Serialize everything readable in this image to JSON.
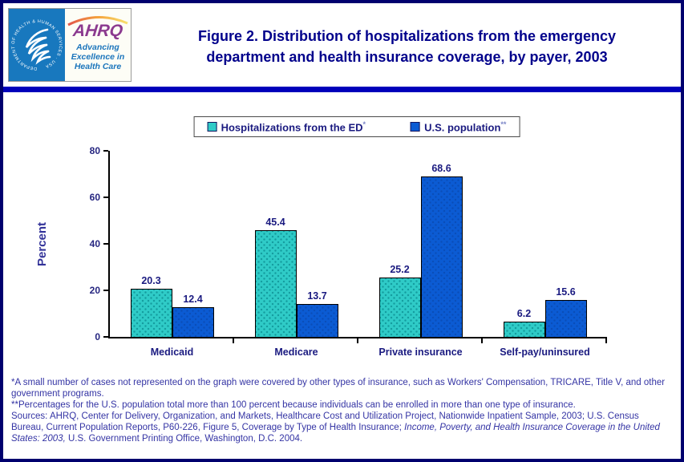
{
  "header": {
    "title_line1": "Figure 2. Distribution of hospitalizations from the emergency",
    "title_line2": "department and health insurance coverage, by payer, 2003",
    "logo": {
      "hhs_circular_text": "DEPARTMENT OF HEALTH & HUMAN SERVICES · USA",
      "ahrq": "AHRQ",
      "tagline": "Advancing Excellence in Health Care"
    }
  },
  "legend": {
    "items": [
      {
        "label": "Hospitalizations from the ED",
        "sup": "*",
        "color": "#2FCBC7"
      },
      {
        "label": "U.S. population",
        "sup": "**",
        "color": "#0B5BD3"
      }
    ]
  },
  "chart_data": {
    "type": "bar",
    "title": "Distribution of hospitalizations from the emergency department and health insurance coverage, by payer, 2003",
    "categories": [
      "Medicaid",
      "Medicare",
      "Private insurance",
      "Self-pay/uninsured"
    ],
    "series": [
      {
        "name": "Hospitalizations from the ED*",
        "values": [
          20.3,
          45.4,
          25.2,
          6.2
        ],
        "color": "#2FCBC7"
      },
      {
        "name": "U.S. population**",
        "values": [
          12.4,
          13.7,
          68.6,
          15.6
        ],
        "color": "#0B5BD3"
      }
    ],
    "xlabel": "",
    "ylabel": "Percent",
    "ylim": [
      0,
      80
    ],
    "yticks": [
      0,
      20,
      40,
      60,
      80
    ],
    "grid": false,
    "legend_position": "top-center"
  },
  "footnotes": {
    "note1": "*A small number of cases not represented on the graph were covered by other types of insurance, such as Workers' Compensation, TRICARE, Title V, and other government programs.",
    "note2": "**Percentages for the U.S. population total more than 100 percent because individuals can be enrolled in more than one type of insurance.",
    "sources_before": "Sources: AHRQ, Center for Delivery, Organization, and Markets, Healthcare Cost and Utilization Project, Nationwide Inpatient Sample, 2003; U.S. Census Bureau, Current Population Reports, P60-226, Figure 5, Coverage by Type of Health Insurance; ",
    "sources_italic": "Income, Poverty, and Health Insurance Coverage in the United States: 2003,",
    "sources_after": " U.S. Government Printing Office, Washington, D.C. 2004."
  }
}
